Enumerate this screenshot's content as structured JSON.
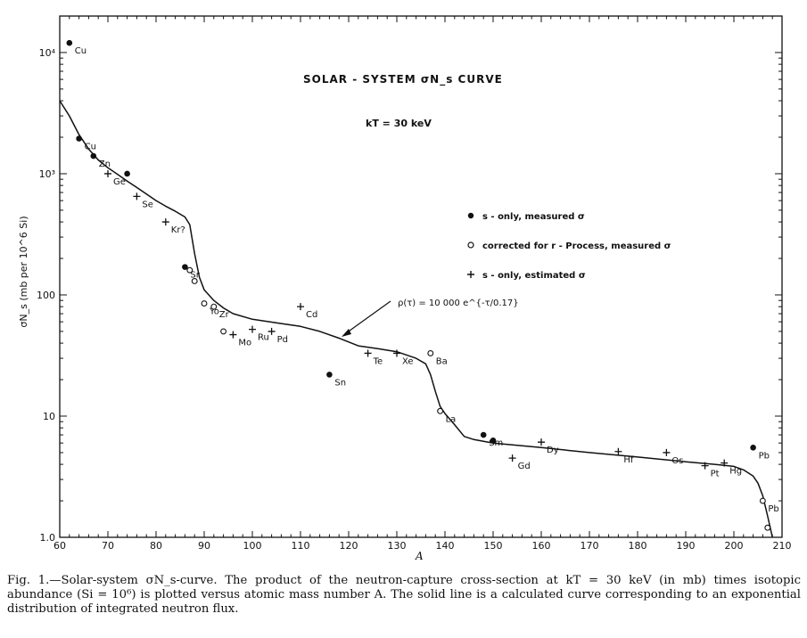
{
  "chart_data": {
    "type": "scatter",
    "title": "SOLAR - SYSTEM σN_s CURVE",
    "subtitle": "kT = 30 keV",
    "xlabel": "A",
    "ylabel": "σN_s (mb per 10^6 Si)",
    "x_range": [
      60,
      210
    ],
    "y_range": [
      1.0,
      20000
    ],
    "y_scale": "log",
    "x_ticks": [
      60,
      70,
      80,
      90,
      100,
      110,
      120,
      130,
      140,
      150,
      160,
      170,
      180,
      190,
      200,
      210
    ],
    "y_ticks": [
      {
        "value": 1,
        "label": "1.0"
      },
      {
        "value": 10,
        "label": "10"
      },
      {
        "value": 100,
        "label": "100"
      },
      {
        "value": 1000,
        "label": "10³"
      },
      {
        "value": 10000,
        "label": "10⁴"
      }
    ],
    "grid": false,
    "legend_placement": "right",
    "legend": [
      {
        "symbol": "filled",
        "label": "s - only, measured σ"
      },
      {
        "symbol": "open",
        "label": "corrected for r - Process, measured σ"
      },
      {
        "symbol": "plus",
        "label": "s - only, estimated σ"
      }
    ],
    "annotation": "ρ(τ) = 10 000 e^{-τ/0.17}",
    "series": [
      {
        "name": "s - only, measured σ",
        "symbol": "filled",
        "points": [
          {
            "label": "Cu",
            "x": 62,
            "y": 12000
          },
          {
            "label": "Cu",
            "x": 64,
            "y": 1950
          },
          {
            "label": "Zn",
            "x": 67,
            "y": 1400
          },
          {
            "label": "",
            "x": 74,
            "y": 1000
          },
          {
            "label": "Sr",
            "x": 86,
            "y": 170
          },
          {
            "label": "Sn",
            "x": 116,
            "y": 22
          },
          {
            "label": "Sm",
            "x": 148,
            "y": 7
          },
          {
            "label": "",
            "x": 150,
            "y": 6.3
          },
          {
            "label": "Pb",
            "x": 204,
            "y": 5.5
          }
        ]
      },
      {
        "name": "corrected for r - Process, measured σ",
        "symbol": "open",
        "points": [
          {
            "label": "",
            "x": 87,
            "y": 160
          },
          {
            "label": "",
            "x": 88,
            "y": 130
          },
          {
            "label": "Yo",
            "x": 90,
            "y": 85
          },
          {
            "label": "Zr",
            "x": 92,
            "y": 80
          },
          {
            "label": "",
            "x": 94,
            "y": 50
          },
          {
            "label": "Ba",
            "x": 137,
            "y": 33
          },
          {
            "label": "La",
            "x": 139,
            "y": 11
          },
          {
            "label": "Pb",
            "x": 206,
            "y": 2.0
          },
          {
            "label": "",
            "x": 207,
            "y": 1.2
          }
        ]
      },
      {
        "name": "s - only, estimated σ",
        "symbol": "plus",
        "points": [
          {
            "label": "Ge",
            "x": 70,
            "y": 1000
          },
          {
            "label": "Se",
            "x": 76,
            "y": 650
          },
          {
            "label": "Kr?",
            "x": 82,
            "y": 400
          },
          {
            "label": "Mo",
            "x": 96,
            "y": 47
          },
          {
            "label": "Ru",
            "x": 100,
            "y": 52
          },
          {
            "label": "Pd",
            "x": 104,
            "y": 50
          },
          {
            "label": "Cd",
            "x": 110,
            "y": 80
          },
          {
            "label": "Te",
            "x": 124,
            "y": 33
          },
          {
            "label": "Xe",
            "x": 130,
            "y": 33
          },
          {
            "label": "Gd",
            "x": 154,
            "y": 4.5
          },
          {
            "label": "Dy",
            "x": 160,
            "y": 6.1
          },
          {
            "label": "Hf",
            "x": 176,
            "y": 5.1
          },
          {
            "label": "Os",
            "x": 186,
            "y": 5.0
          },
          {
            "label": "Pt",
            "x": 194,
            "y": 3.9
          },
          {
            "label": "Hg",
            "x": 198,
            "y": 4.1
          }
        ]
      }
    ],
    "curve": {
      "x": [
        60,
        62,
        64,
        66,
        68,
        70,
        72,
        74,
        76,
        78,
        80,
        82,
        84,
        86,
        87,
        88,
        89,
        90,
        92,
        94,
        96,
        100,
        106,
        110,
        114,
        118,
        122,
        126,
        130,
        134,
        136,
        137,
        138,
        139,
        140,
        142,
        144,
        146,
        150,
        160,
        170,
        180,
        190,
        196,
        200,
        202,
        204,
        205,
        206,
        207,
        208
      ],
      "y": [
        4000,
        3000,
        2100,
        1600,
        1300,
        1120,
        990,
        870,
        770,
        680,
        600,
        540,
        490,
        440,
        380,
        220,
        140,
        110,
        90,
        78,
        70,
        63,
        58,
        55,
        50,
        44,
        38,
        36,
        34,
        30,
        27,
        22,
        16,
        12,
        10.5,
        8.5,
        6.8,
        6.4,
        6.0,
        5.5,
        5.0,
        4.6,
        4.2,
        4.0,
        3.85,
        3.6,
        3.2,
        2.8,
        2.2,
        1.5,
        1.0
      ]
    }
  },
  "caption": "Fig. 1.—Solar-system σN_s-curve. The product of the neutron-capture cross-section at kT = 30 keV (in mb) times isotopic abundance (Si = 10⁶) is plotted versus atomic mass number A. The solid line is a calculated curve corresponding to an exponential distribution of integrated neutron flux.",
  "colors": {
    "ink": "#111111",
    "paper": "#ffffff"
  }
}
